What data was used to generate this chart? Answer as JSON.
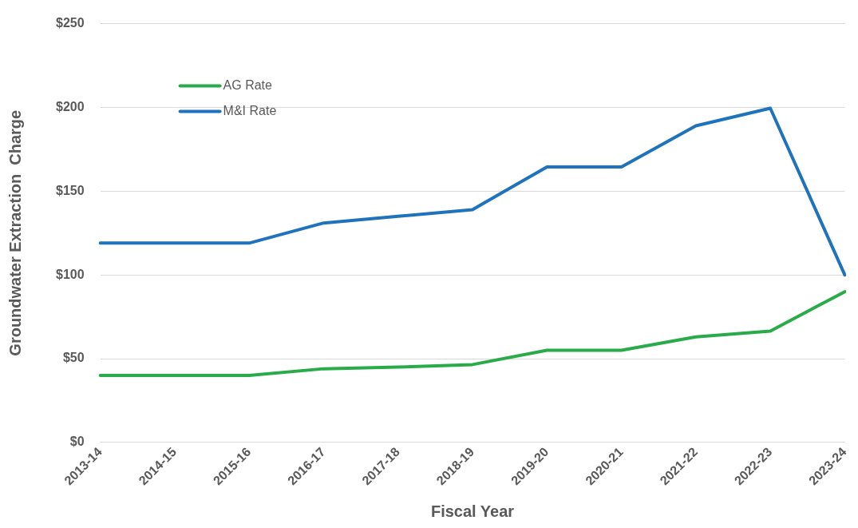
{
  "chart_data": {
    "type": "line",
    "xlabel": "Fiscal Year",
    "ylabel": "Groundwater Extraction  Charge",
    "categories": [
      "2013-14",
      "2014-15",
      "2015-16",
      "2016-17",
      "2017-18",
      "2018-19",
      "2019-20",
      "2020-21",
      "2021-22",
      "2022-23",
      "2023-24"
    ],
    "series": [
      {
        "name": "AG Rate",
        "color": "#2aab4a",
        "values": [
          40,
          40,
          40,
          44,
          45,
          46.5,
          55,
          55,
          63,
          66.5,
          90
        ]
      },
      {
        "name": "M&I Rate",
        "color": "#1f73bd",
        "values": [
          119,
          119,
          119,
          131,
          135,
          139,
          164.5,
          164.5,
          189,
          199.5,
          100
        ]
      }
    ],
    "ylim": [
      0,
      250
    ],
    "yticks": [
      {
        "value": 0,
        "label": "$0"
      },
      {
        "value": 50,
        "label": "$50"
      },
      {
        "value": 100,
        "label": "$100"
      },
      {
        "value": 150,
        "label": "$150"
      },
      {
        "value": 200,
        "label": "$200"
      },
      {
        "value": 250,
        "label": "$250"
      }
    ],
    "grid": "y",
    "legend": "top left",
    "marker": "none",
    "line_style": "solid"
  }
}
